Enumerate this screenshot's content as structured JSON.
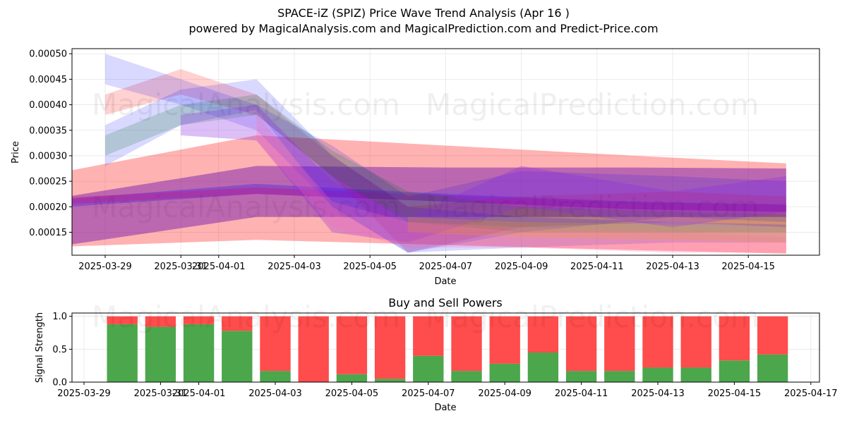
{
  "header": {
    "title": "SPACE-iZ (SPIZ) Price Wave Trend Analysis (Apr 16 )",
    "subtitle": "powered by MagicalAnalysis.com and MagicalPrediction.com and Predict-Price.com"
  },
  "watermarks": {
    "left": "MagicalAnalysis.com",
    "right": "MagicalPrediction.com"
  },
  "chart_data": [
    {
      "type": "area",
      "title": "",
      "xlabel": "Date",
      "ylabel": "Price",
      "x_tick_labels": [
        "2025-03-29",
        "2025-03-31",
        "2025-04-01",
        "2025-04-03",
        "2025-04-05",
        "2025-04-07",
        "2025-04-09",
        "2025-04-11",
        "2025-04-13",
        "2025-04-15"
      ],
      "y_tick_labels": [
        "0.00015",
        "0.00020",
        "0.00025",
        "0.00030",
        "0.00035",
        "0.00040",
        "0.00045",
        "0.00050"
      ],
      "xlim": [
        "2025-03-28",
        "2025-04-17"
      ],
      "ylim": [
        0.000105,
        0.00051
      ],
      "grid": true,
      "bands": [
        {
          "color": "#ff0000",
          "alpha": 0.3,
          "x": [
            "2025-03-28",
            "2025-04-02",
            "2025-04-07",
            "2025-04-12",
            "2025-04-16"
          ],
          "upper": [
            0.00027,
            0.00034,
            0.00032,
            0.0003,
            0.000285
          ],
          "lower": [
            0.000122,
            0.000135,
            0.000125,
            0.000115,
            0.000108
          ]
        },
        {
          "color": "#6a0dad",
          "alpha": 0.45,
          "x": [
            "2025-03-28",
            "2025-04-02",
            "2025-04-07",
            "2025-04-12",
            "2025-04-16"
          ],
          "upper": [
            0.00022,
            0.00028,
            0.000277,
            0.000277,
            0.000275
          ],
          "lower": [
            0.000125,
            0.00018,
            0.00018,
            0.00018,
            0.00018
          ]
        },
        {
          "color": "#0000ff",
          "alpha": 0.25,
          "x": [
            "2025-03-28",
            "2025-04-02",
            "2025-04-07",
            "2025-04-12",
            "2025-04-16"
          ],
          "upper": [
            0.000215,
            0.000245,
            0.000225,
            0.00021,
            0.000205
          ],
          "lower": [
            0.0002,
            0.000225,
            0.00021,
            0.000195,
            0.00019
          ]
        },
        {
          "color": "#c71585",
          "alpha": 0.4,
          "x": [
            "2025-03-28",
            "2025-04-02",
            "2025-04-07",
            "2025-04-12",
            "2025-04-16"
          ],
          "upper": [
            0.000218,
            0.000238,
            0.000222,
            0.000208,
            0.000203
          ],
          "lower": [
            0.000205,
            0.000225,
            0.00021,
            0.000195,
            0.00019
          ]
        },
        {
          "color": "#ff0000",
          "alpha": 0.18,
          "x": [
            "2025-03-29",
            "2025-03-31",
            "2025-04-02",
            "2025-04-04",
            "2025-04-06",
            "2025-04-09",
            "2025-04-13",
            "2025-04-16"
          ],
          "upper": [
            0.00042,
            0.00047,
            0.00042,
            0.0003,
            0.0002,
            0.00022,
            0.00023,
            0.00022
          ],
          "lower": [
            0.00038,
            0.00042,
            0.00038,
            0.00026,
            0.00011,
            0.00016,
            0.00017,
            0.00016
          ]
        },
        {
          "color": "#0000ff",
          "alpha": 0.15,
          "x": [
            "2025-03-29",
            "2025-03-31",
            "2025-04-02",
            "2025-04-04",
            "2025-04-06",
            "2025-04-09",
            "2025-04-13",
            "2025-04-16"
          ],
          "upper": [
            0.0005,
            0.00045,
            0.0004,
            0.00032,
            0.00022,
            0.00027,
            0.00026,
            0.00025
          ],
          "lower": [
            0.00044,
            0.0004,
            0.00035,
            0.0002,
            0.00011,
            0.00015,
            0.00018,
            0.00017
          ]
        },
        {
          "color": "#008000",
          "alpha": 0.18,
          "x": [
            "2025-03-29",
            "2025-03-31",
            "2025-04-02",
            "2025-04-04",
            "2025-04-06",
            "2025-04-09",
            "2025-04-13",
            "2025-04-16"
          ],
          "upper": [
            0.00034,
            0.0004,
            0.00042,
            0.00031,
            0.00023,
            0.0002,
            0.00019,
            0.000185
          ],
          "lower": [
            0.0003,
            0.00036,
            0.00038,
            0.00026,
            0.00017,
            0.00015,
            0.00015,
            0.00015
          ]
        },
        {
          "color": "#0000ff",
          "alpha": 0.15,
          "x": [
            "2025-03-29",
            "2025-03-31",
            "2025-04-02",
            "2025-04-04",
            "2025-04-06",
            "2025-04-09",
            "2025-04-13",
            "2025-04-16"
          ],
          "upper": [
            0.00036,
            0.00043,
            0.00045,
            0.0003,
            0.0002,
            0.00018,
            0.00017,
            0.000165
          ],
          "lower": [
            0.00028,
            0.00036,
            0.00039,
            0.0002,
            0.00011,
            0.00012,
            0.00013,
            0.00013
          ]
        },
        {
          "color": "#8a2be2",
          "alpha": 0.3,
          "x": [
            "2025-03-31",
            "2025-04-02",
            "2025-04-04",
            "2025-04-06",
            "2025-04-09",
            "2025-04-13",
            "2025-04-16"
          ],
          "upper": [
            0.00038,
            0.0004,
            0.00025,
            0.00018,
            0.00028,
            0.00023,
            0.00026
          ],
          "lower": [
            0.00034,
            0.00033,
            0.00015,
            0.00013,
            0.0002,
            0.00016,
            0.00019
          ]
        },
        {
          "color": "#ff69b4",
          "alpha": 0.25,
          "x": [
            "2025-04-02",
            "2025-04-04",
            "2025-04-06",
            "2025-04-09",
            "2025-04-13",
            "2025-04-16"
          ],
          "upper": [
            0.00038,
            0.00021,
            0.00017,
            0.00016,
            0.00015,
            0.00014
          ],
          "lower": [
            0.00033,
            0.00016,
            0.00012,
            0.00012,
            0.00011,
            0.00011
          ]
        },
        {
          "color": "#ffa500",
          "alpha": 0.2,
          "x": [
            "2025-04-06",
            "2025-04-09",
            "2025-04-13",
            "2025-04-16"
          ],
          "upper": [
            0.00018,
            0.00017,
            0.000165,
            0.00016
          ],
          "lower": [
            0.00015,
            0.00014,
            0.000135,
            0.00013
          ]
        }
      ]
    },
    {
      "type": "bar",
      "title": "Buy and Sell Powers",
      "xlabel": "Date",
      "ylabel": "Signal Strength",
      "x_tick_labels": [
        "2025-03-29",
        "2025-03-31",
        "2025-04-01",
        "2025-04-03",
        "2025-04-05",
        "2025-04-07",
        "2025-04-09",
        "2025-04-11",
        "2025-04-13",
        "2025-04-15",
        "2025-04-17"
      ],
      "y_tick_labels": [
        "0.0",
        "0.5",
        "1.0"
      ],
      "ylim": [
        0,
        1.05
      ],
      "xlim": [
        "2025-03-29",
        "2025-04-17"
      ],
      "grid": true,
      "categories": [
        "2025-03-30",
        "2025-03-31",
        "2025-04-01",
        "2025-04-02",
        "2025-04-03",
        "2025-04-04",
        "2025-04-05",
        "2025-04-06",
        "2025-04-07",
        "2025-04-08",
        "2025-04-09",
        "2025-04-10",
        "2025-04-11",
        "2025-04-12",
        "2025-04-13",
        "2025-04-14",
        "2025-04-15",
        "2025-04-16"
      ],
      "series": [
        {
          "color": "#4ca64c",
          "values": [
            0.88,
            0.84,
            0.88,
            0.78,
            0.17,
            0.0,
            0.12,
            0.05,
            0.4,
            0.17,
            0.28,
            0.45,
            0.17,
            0.17,
            0.22,
            0.22,
            0.33,
            0.42
          ]
        },
        {
          "color": "#ff4c4c",
          "values": [
            0.12,
            0.16,
            0.12,
            0.22,
            0.83,
            1.0,
            0.88,
            0.95,
            0.6,
            0.83,
            0.72,
            0.55,
            0.83,
            0.83,
            0.78,
            0.78,
            0.67,
            0.58
          ]
        }
      ]
    }
  ]
}
